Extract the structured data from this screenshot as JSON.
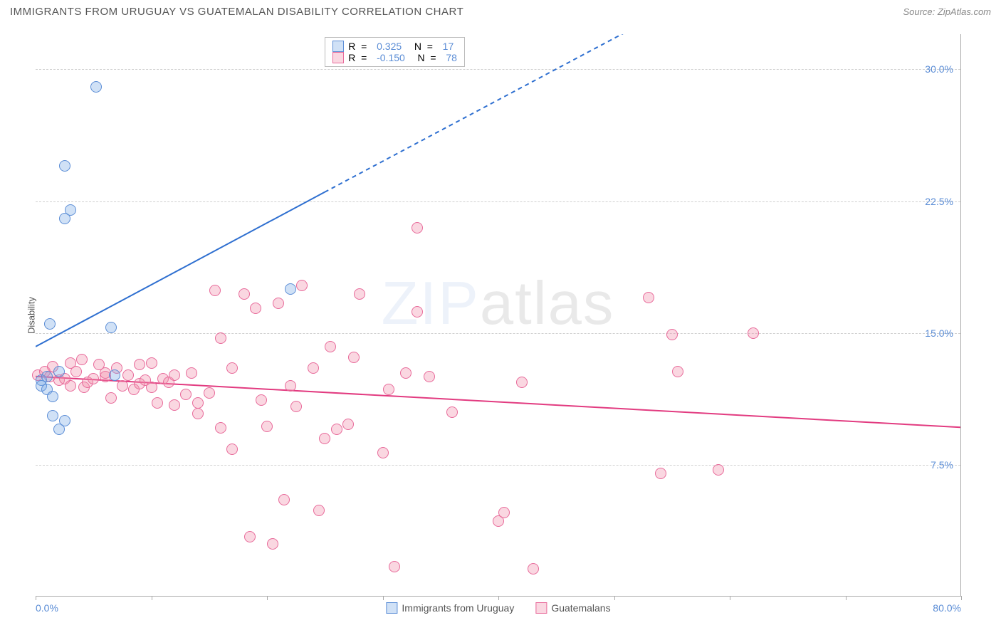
{
  "title": "IMMIGRANTS FROM URUGUAY VS GUATEMALAN DISABILITY CORRELATION CHART",
  "source": "Source: ZipAtlas.com",
  "watermark_a": "ZIP",
  "watermark_b": "atlas",
  "y_axis": {
    "label": "Disability"
  },
  "chart": {
    "type": "scatter",
    "xlim": [
      0,
      80
    ],
    "ylim": [
      0,
      32
    ],
    "x_min_label": "0.0%",
    "x_max_label": "80.0%",
    "y_ticks": [
      7.5,
      15.0,
      22.5,
      30.0
    ],
    "y_tick_labels": [
      "7.5%",
      "15.0%",
      "22.5%",
      "30.0%"
    ],
    "x_ticks": [
      0,
      10,
      20,
      30,
      40,
      50,
      60,
      70,
      80
    ],
    "grid_color": "#d0d0d0",
    "background_color": "#ffffff",
    "marker_radius": 8,
    "series": [
      {
        "name": "Immigrants from Uruguay",
        "color_fill": "rgba(120,170,230,0.35)",
        "color_stroke": "#5b8dd6",
        "r_value": "0.325",
        "n_value": "17",
        "trend": {
          "solid_from": [
            0,
            14.2
          ],
          "solid_to": [
            25,
            23
          ],
          "dashed_to": [
            55,
            33.5
          ],
          "color": "#2e6fd0",
          "width": 2
        },
        "points": [
          [
            0.5,
            12.3
          ],
          [
            0.5,
            12.0
          ],
          [
            1.0,
            11.8
          ],
          [
            1.0,
            12.5
          ],
          [
            1.2,
            15.5
          ],
          [
            1.5,
            10.3
          ],
          [
            1.5,
            11.4
          ],
          [
            2.0,
            12.8
          ],
          [
            2.0,
            9.5
          ],
          [
            2.5,
            10.0
          ],
          [
            2.5,
            21.5
          ],
          [
            2.5,
            24.5
          ],
          [
            3.0,
            22.0
          ],
          [
            5.2,
            29.0
          ],
          [
            6.5,
            15.3
          ],
          [
            6.8,
            12.6
          ],
          [
            22.0,
            17.5
          ]
        ]
      },
      {
        "name": "Guatemalans",
        "color_fill": "rgba(240,140,170,0.35)",
        "color_stroke": "#e86a9a",
        "r_value": "-0.150",
        "n_value": "78",
        "trend": {
          "solid_from": [
            0,
            12.5
          ],
          "solid_to": [
            80,
            9.6
          ],
          "color": "#e23b80",
          "width": 2
        },
        "points": [
          [
            0.2,
            12.6
          ],
          [
            0.8,
            12.8
          ],
          [
            1.2,
            12.5
          ],
          [
            1.5,
            13.1
          ],
          [
            2.0,
            12.3
          ],
          [
            2.5,
            12.4
          ],
          [
            3.0,
            13.3
          ],
          [
            3.0,
            12.0
          ],
          [
            3.5,
            12.8
          ],
          [
            4.0,
            13.5
          ],
          [
            4.2,
            11.9
          ],
          [
            4.5,
            12.2
          ],
          [
            5.0,
            12.4
          ],
          [
            5.5,
            13.2
          ],
          [
            6.0,
            12.5
          ],
          [
            6.0,
            12.7
          ],
          [
            6.5,
            11.3
          ],
          [
            7.0,
            13.0
          ],
          [
            7.5,
            12.0
          ],
          [
            8.0,
            12.6
          ],
          [
            8.5,
            11.8
          ],
          [
            9.0,
            13.2
          ],
          [
            9.0,
            12.1
          ],
          [
            9.5,
            12.3
          ],
          [
            10.0,
            11.9
          ],
          [
            10.0,
            13.3
          ],
          [
            10.5,
            11.0
          ],
          [
            11.0,
            12.4
          ],
          [
            11.5,
            12.2
          ],
          [
            12.0,
            10.9
          ],
          [
            12.0,
            12.6
          ],
          [
            13.0,
            11.5
          ],
          [
            13.5,
            12.7
          ],
          [
            14.0,
            11.0
          ],
          [
            14.0,
            10.4
          ],
          [
            15.0,
            11.6
          ],
          [
            15.5,
            17.4
          ],
          [
            16.0,
            14.7
          ],
          [
            16.0,
            9.6
          ],
          [
            17.0,
            13.0
          ],
          [
            17.0,
            8.4
          ],
          [
            18.0,
            17.2
          ],
          [
            18.5,
            3.4
          ],
          [
            19.0,
            16.4
          ],
          [
            19.5,
            11.2
          ],
          [
            20.0,
            9.7
          ],
          [
            20.5,
            3.0
          ],
          [
            21.0,
            16.7
          ],
          [
            21.5,
            5.5
          ],
          [
            22.0,
            12.0
          ],
          [
            22.5,
            10.8
          ],
          [
            23.0,
            17.7
          ],
          [
            24.0,
            13.0
          ],
          [
            24.5,
            4.9
          ],
          [
            25.0,
            9.0
          ],
          [
            25.5,
            14.2
          ],
          [
            26.0,
            9.5
          ],
          [
            27.0,
            9.8
          ],
          [
            27.5,
            13.6
          ],
          [
            28.0,
            17.2
          ],
          [
            30.0,
            8.2
          ],
          [
            30.5,
            11.8
          ],
          [
            31.0,
            1.7
          ],
          [
            32.0,
            12.7
          ],
          [
            33.0,
            21.0
          ],
          [
            33.0,
            16.2
          ],
          [
            34.0,
            12.5
          ],
          [
            36.0,
            10.5
          ],
          [
            40.0,
            4.3
          ],
          [
            40.5,
            4.8
          ],
          [
            42.0,
            12.2
          ],
          [
            43.0,
            1.6
          ],
          [
            53.0,
            17.0
          ],
          [
            54.0,
            7.0
          ],
          [
            55.0,
            14.9
          ],
          [
            55.5,
            12.8
          ],
          [
            59.0,
            7.2
          ],
          [
            62.0,
            15.0
          ]
        ]
      }
    ]
  },
  "top_legend_labels": {
    "r": "R  =",
    "n": "N  ="
  },
  "bottom_legend": [
    {
      "label": "Immigrants from Uruguay",
      "fill": "rgba(120,170,230,0.35)",
      "stroke": "#5b8dd6"
    },
    {
      "label": "Guatemalans",
      "fill": "rgba(240,140,170,0.35)",
      "stroke": "#e86a9a"
    }
  ]
}
